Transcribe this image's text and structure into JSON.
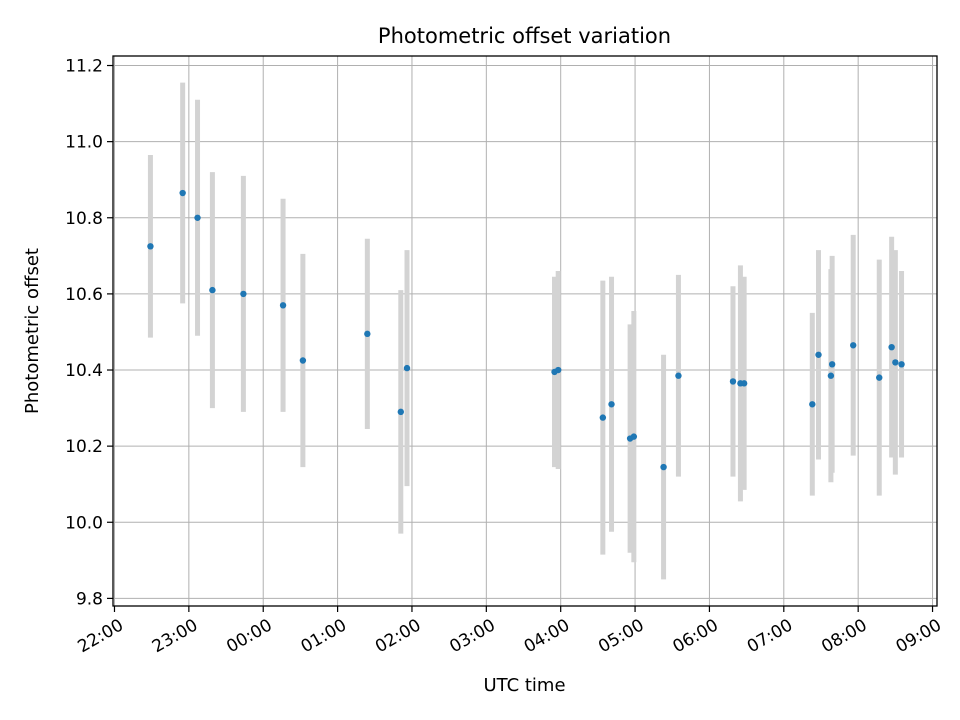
{
  "chart_data": {
    "type": "scatter",
    "title": "Photometric offset variation",
    "xlabel": "UTC time",
    "ylabel": "Photometric offset",
    "grid": true,
    "x_tick_labels": [
      "22:00",
      "23:00",
      "00:00",
      "01:00",
      "02:00",
      "03:00",
      "04:00",
      "05:00",
      "06:00",
      "07:00",
      "08:00",
      "09:00"
    ],
    "x_tick_hours": [
      0,
      1,
      2,
      3,
      4,
      5,
      6,
      7,
      8,
      9,
      10,
      11
    ],
    "xlim_hours": [
      -0.02,
      11.06
    ],
    "y_ticks": [
      9.8,
      10.0,
      10.2,
      10.4,
      10.6,
      10.8,
      11.0,
      11.2
    ],
    "ylim": [
      9.78,
      11.225
    ],
    "marker_color": "#1f77b4",
    "errorbar_color": "#d3d3d3",
    "points": [
      {
        "x": "22:29",
        "y": 10.725,
        "err": 0.24
      },
      {
        "x": "22:55",
        "y": 10.865,
        "err": 0.29
      },
      {
        "x": "23:07",
        "y": 10.8,
        "err": 0.31
      },
      {
        "x": "23:19",
        "y": 10.61,
        "err": 0.31
      },
      {
        "x": "23:44",
        "y": 10.6,
        "err": 0.31
      },
      {
        "x": "00:16",
        "y": 10.57,
        "err": 0.28
      },
      {
        "x": "00:32",
        "y": 10.425,
        "err": 0.28
      },
      {
        "x": "01:24",
        "y": 10.495,
        "err": 0.25
      },
      {
        "x": "01:51",
        "y": 10.29,
        "err": 0.32
      },
      {
        "x": "01:56",
        "y": 10.405,
        "err": 0.31
      },
      {
        "x": "03:55",
        "y": 10.395,
        "err": 0.25
      },
      {
        "x": "03:58",
        "y": 10.4,
        "err": 0.26
      },
      {
        "x": "04:34",
        "y": 10.275,
        "err": 0.36
      },
      {
        "x": "04:41",
        "y": 10.31,
        "err": 0.335
      },
      {
        "x": "04:56",
        "y": 10.22,
        "err": 0.3
      },
      {
        "x": "04:59",
        "y": 10.225,
        "err": 0.33
      },
      {
        "x": "05:23",
        "y": 10.145,
        "err": 0.295
      },
      {
        "x": "05:35",
        "y": 10.385,
        "err": 0.265
      },
      {
        "x": "06:19",
        "y": 10.37,
        "err": 0.25
      },
      {
        "x": "06:25",
        "y": 10.365,
        "err": 0.31
      },
      {
        "x": "06:28",
        "y": 10.365,
        "err": 0.28
      },
      {
        "x": "07:23",
        "y": 10.31,
        "err": 0.24
      },
      {
        "x": "07:28",
        "y": 10.44,
        "err": 0.275
      },
      {
        "x": "07:38",
        "y": 10.385,
        "err": 0.28
      },
      {
        "x": "07:39",
        "y": 10.415,
        "err": 0.285
      },
      {
        "x": "07:56",
        "y": 10.465,
        "err": 0.29
      },
      {
        "x": "08:17",
        "y": 10.38,
        "err": 0.31
      },
      {
        "x": "08:27",
        "y": 10.46,
        "err": 0.29
      },
      {
        "x": "08:30",
        "y": 10.42,
        "err": 0.295
      },
      {
        "x": "08:35",
        "y": 10.415,
        "err": 0.245
      }
    ]
  }
}
